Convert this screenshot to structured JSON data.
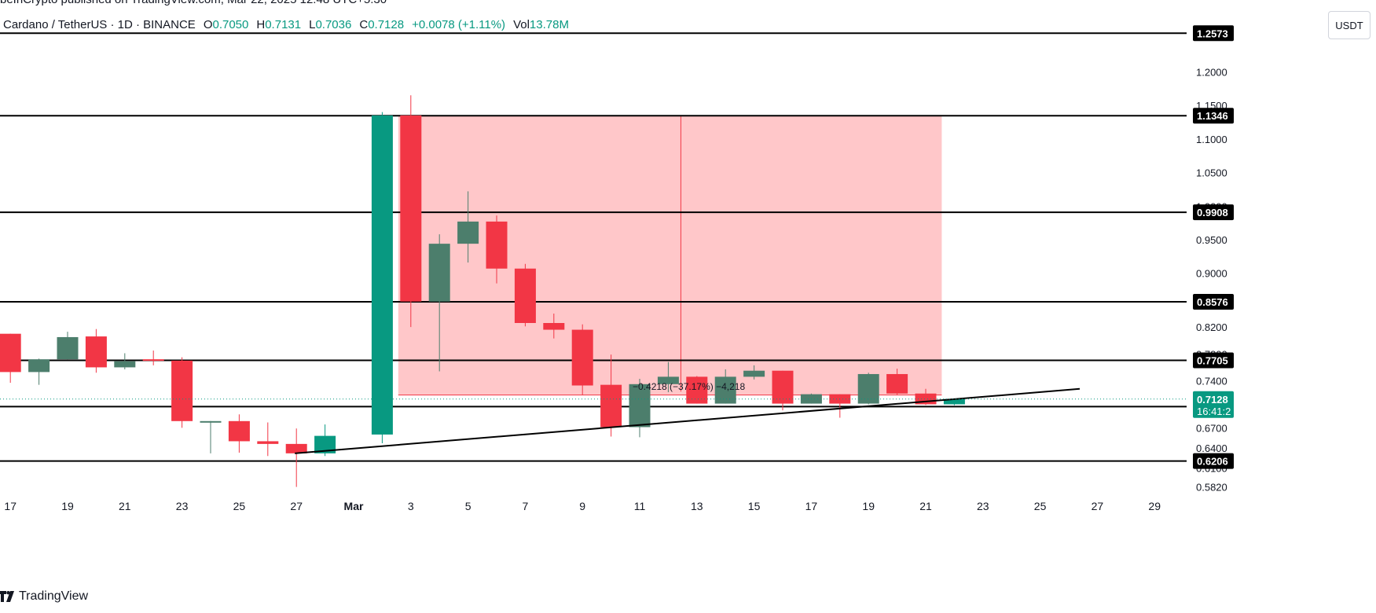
{
  "top_strip": "beInCrypto published on TradingView.com, Mar 22, 2025 12:48 UTC+5:30",
  "header": {
    "symbol": "Cardano / TetherUS · 1D · BINANCE",
    "o_label": "O",
    "o_value": "0.7050",
    "h_label": "H",
    "h_value": "0.7131",
    "l_label": "L",
    "l_value": "0.7036",
    "c_label": "C",
    "c_value": "0.7128",
    "change": "+0.0078 (+1.11%)",
    "vol_label": "Vol",
    "vol_value": "13.78M"
  },
  "currency_label": "USDT",
  "footer": {
    "brand": "TradingView"
  },
  "colors": {
    "up": "#089981",
    "up_muted": "#4c7e6c",
    "down": "#f23645",
    "zone_fill": "#ffc4c6"
  },
  "chart_data": {
    "type": "candlestick",
    "x_tick_labels": [
      "17",
      "19",
      "21",
      "23",
      "25",
      "27",
      "Mar",
      "3",
      "5",
      "7",
      "9",
      "11",
      "13",
      "15",
      "17",
      "19",
      "21",
      "23",
      "25",
      "27",
      "29"
    ],
    "y_tick_labels": [
      "0.5820",
      "0.6100",
      "0.6400",
      "0.6700",
      "0.7000",
      "0.7400",
      "0.7800",
      "0.8200",
      "0.8600",
      "0.9000",
      "0.9500",
      "1.0000",
      "1.0500",
      "1.1000",
      "1.1500",
      "1.2000"
    ],
    "ylim": [
      0.578,
      1.26
    ],
    "candles": [
      {
        "date": "Feb 16",
        "o": 0.77,
        "h": 0.825,
        "l": 0.77,
        "c": 0.81
      },
      {
        "date": "Feb 17",
        "o": 0.81,
        "h": 0.81,
        "l": 0.737,
        "c": 0.753
      },
      {
        "date": "Feb 18",
        "o": 0.753,
        "h": 0.773,
        "l": 0.734,
        "c": 0.772
      },
      {
        "date": "Feb 19",
        "o": 0.772,
        "h": 0.813,
        "l": 0.772,
        "c": 0.805
      },
      {
        "date": "Feb 20",
        "o": 0.806,
        "h": 0.817,
        "l": 0.752,
        "c": 0.76
      },
      {
        "date": "Feb 21",
        "o": 0.76,
        "h": 0.781,
        "l": 0.757,
        "c": 0.769
      },
      {
        "date": "Feb 22",
        "o": 0.772,
        "h": 0.785,
        "l": 0.763,
        "c": 0.77
      },
      {
        "date": "Feb 23",
        "o": 0.77,
        "h": 0.775,
        "l": 0.67,
        "c": 0.68
      },
      {
        "date": "Feb 24",
        "o": 0.679,
        "h": 0.68,
        "l": 0.632,
        "c": 0.68
      },
      {
        "date": "Feb 25",
        "o": 0.68,
        "h": 0.69,
        "l": 0.633,
        "c": 0.65
      },
      {
        "date": "Feb 26",
        "o": 0.65,
        "h": 0.678,
        "l": 0.628,
        "c": 0.646
      },
      {
        "date": "Feb 27",
        "o": 0.646,
        "h": 0.669,
        "l": 0.582,
        "c": 0.632
      },
      {
        "date": "Feb 28",
        "o": 0.632,
        "h": 0.675,
        "l": 0.628,
        "c": 0.658
      },
      {
        "date": "Mar 2",
        "o": 0.66,
        "h": 1.14,
        "l": 0.647,
        "c": 1.135
      },
      {
        "date": "Mar 3",
        "o": 1.135,
        "h": 1.165,
        "l": 0.82,
        "c": 0.858
      },
      {
        "date": "Mar 4",
        "o": 0.858,
        "h": 0.958,
        "l": 0.754,
        "c": 0.944
      },
      {
        "date": "Mar 5",
        "o": 0.944,
        "h": 1.022,
        "l": 0.916,
        "c": 0.977
      },
      {
        "date": "Mar 6",
        "o": 0.977,
        "h": 0.986,
        "l": 0.885,
        "c": 0.907
      },
      {
        "date": "Mar 7",
        "o": 0.907,
        "h": 0.914,
        "l": 0.821,
        "c": 0.826
      },
      {
        "date": "Mar 8",
        "o": 0.826,
        "h": 0.84,
        "l": 0.803,
        "c": 0.816
      },
      {
        "date": "Mar 9",
        "o": 0.816,
        "h": 0.824,
        "l": 0.719,
        "c": 0.733
      },
      {
        "date": "Mar 10",
        "o": 0.734,
        "h": 0.779,
        "l": 0.657,
        "c": 0.671
      },
      {
        "date": "Mar 11",
        "o": 0.671,
        "h": 0.743,
        "l": 0.656,
        "c": 0.735
      },
      {
        "date": "Mar 12",
        "o": 0.735,
        "h": 0.768,
        "l": 0.723,
        "c": 0.746
      },
      {
        "date": "Mar 13",
        "o": 0.746,
        "h": 0.747,
        "l": 0.706,
        "c": 0.706
      },
      {
        "date": "Mar 14",
        "o": 0.706,
        "h": 0.757,
        "l": 0.706,
        "c": 0.746
      },
      {
        "date": "Mar 15",
        "o": 0.746,
        "h": 0.763,
        "l": 0.742,
        "c": 0.755
      },
      {
        "date": "Mar 16",
        "o": 0.755,
        "h": 0.755,
        "l": 0.696,
        "c": 0.706
      },
      {
        "date": "Mar 17",
        "o": 0.706,
        "h": 0.721,
        "l": 0.706,
        "c": 0.72
      },
      {
        "date": "Mar 18",
        "o": 0.72,
        "h": 0.72,
        "l": 0.685,
        "c": 0.706
      },
      {
        "date": "Mar 19",
        "o": 0.706,
        "h": 0.752,
        "l": 0.705,
        "c": 0.75
      },
      {
        "date": "Mar 20",
        "o": 0.75,
        "h": 0.758,
        "l": 0.719,
        "c": 0.721
      },
      {
        "date": "Mar 21",
        "o": 0.721,
        "h": 0.728,
        "l": 0.704,
        "c": 0.705
      },
      {
        "date": "Mar 22",
        "o": 0.705,
        "h": 0.7131,
        "l": 0.7036,
        "c": 0.7128
      }
    ],
    "horizontal_levels": [
      "1.1346",
      "0.9908",
      "0.8576",
      "0.7705",
      "0.7016",
      "0.6206"
    ],
    "top_level_label": "1.2573",
    "current_price_label": "0.7128",
    "countdown_label": "16:41:2",
    "measure_label": "−0.4218 (−37.17%) −4,218",
    "trendline": [
      {
        "date": "Feb 27",
        "price": 0.632
      },
      {
        "date": "Mar 26",
        "price": 0.728
      }
    ],
    "zone": {
      "from": "Mar 3",
      "to": "Mar 22",
      "top": 1.1346,
      "bottom": 0.7188
    }
  }
}
